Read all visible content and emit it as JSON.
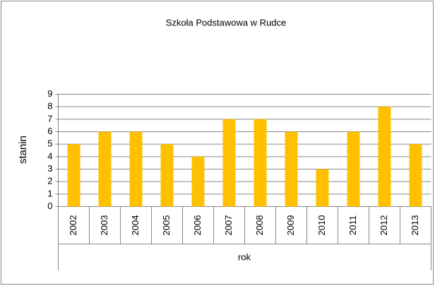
{
  "chart_data": {
    "type": "bar",
    "title": "Szkoła Podstawowa w Rudce",
    "x_label": "rok",
    "y_label": "stanin",
    "categories": [
      "2002",
      "2003",
      "2004",
      "2005",
      "2006",
      "2007",
      "2008",
      "2009",
      "2010",
      "2011",
      "2012",
      "2013"
    ],
    "values": [
      5,
      6,
      6,
      5,
      4,
      7,
      7,
      6,
      3,
      6,
      8,
      5
    ],
    "color": "#ffc000",
    "ylim": [
      0,
      9
    ],
    "yticks": [
      0,
      1,
      2,
      3,
      4,
      5,
      6,
      7,
      8,
      9
    ],
    "grid": true
  }
}
